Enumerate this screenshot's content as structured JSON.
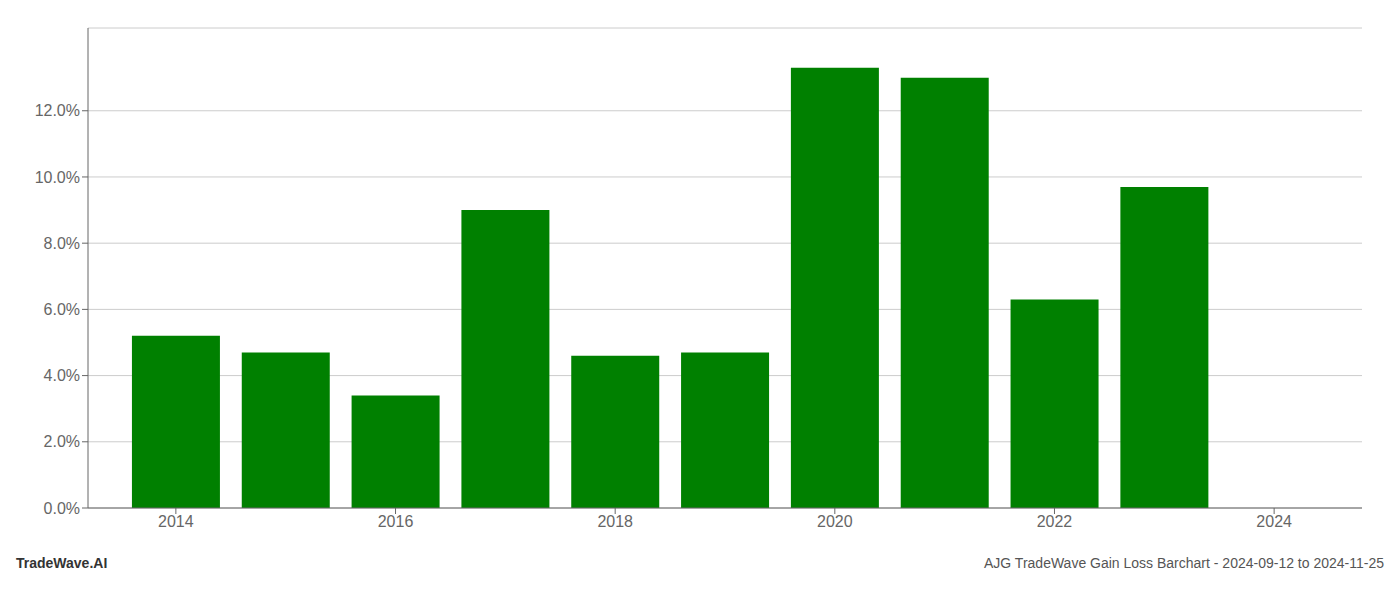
{
  "chart_data": {
    "type": "bar",
    "x": [
      2014,
      2015,
      2016,
      2017,
      2018,
      2019,
      2020,
      2021,
      2022,
      2023
    ],
    "values": [
      0.052,
      0.047,
      0.034,
      0.09,
      0.046,
      0.047,
      0.133,
      0.13,
      0.063,
      0.097
    ],
    "color": "#008000",
    "xlim": [
      2013.2,
      2024.8
    ],
    "xticks": [
      2014,
      2016,
      2018,
      2020,
      2022,
      2024
    ],
    "ylim": [
      0.0,
      0.145
    ],
    "yticks": [
      {
        "value": 0.0,
        "label": "0.0%"
      },
      {
        "value": 0.02,
        "label": "2.0%"
      },
      {
        "value": 0.04,
        "label": "4.0%"
      },
      {
        "value": 0.06,
        "label": "6.0%"
      },
      {
        "value": 0.08,
        "label": "8.0%"
      },
      {
        "value": 0.1,
        "label": "10.0%"
      },
      {
        "value": 0.12,
        "label": "12.0%"
      }
    ],
    "grid": "y",
    "annotations": [
      "TradeWave.AI",
      "AJG TradeWave Gain Loss Barchart - 2024-09-12 to 2024-11-25"
    ]
  }
}
